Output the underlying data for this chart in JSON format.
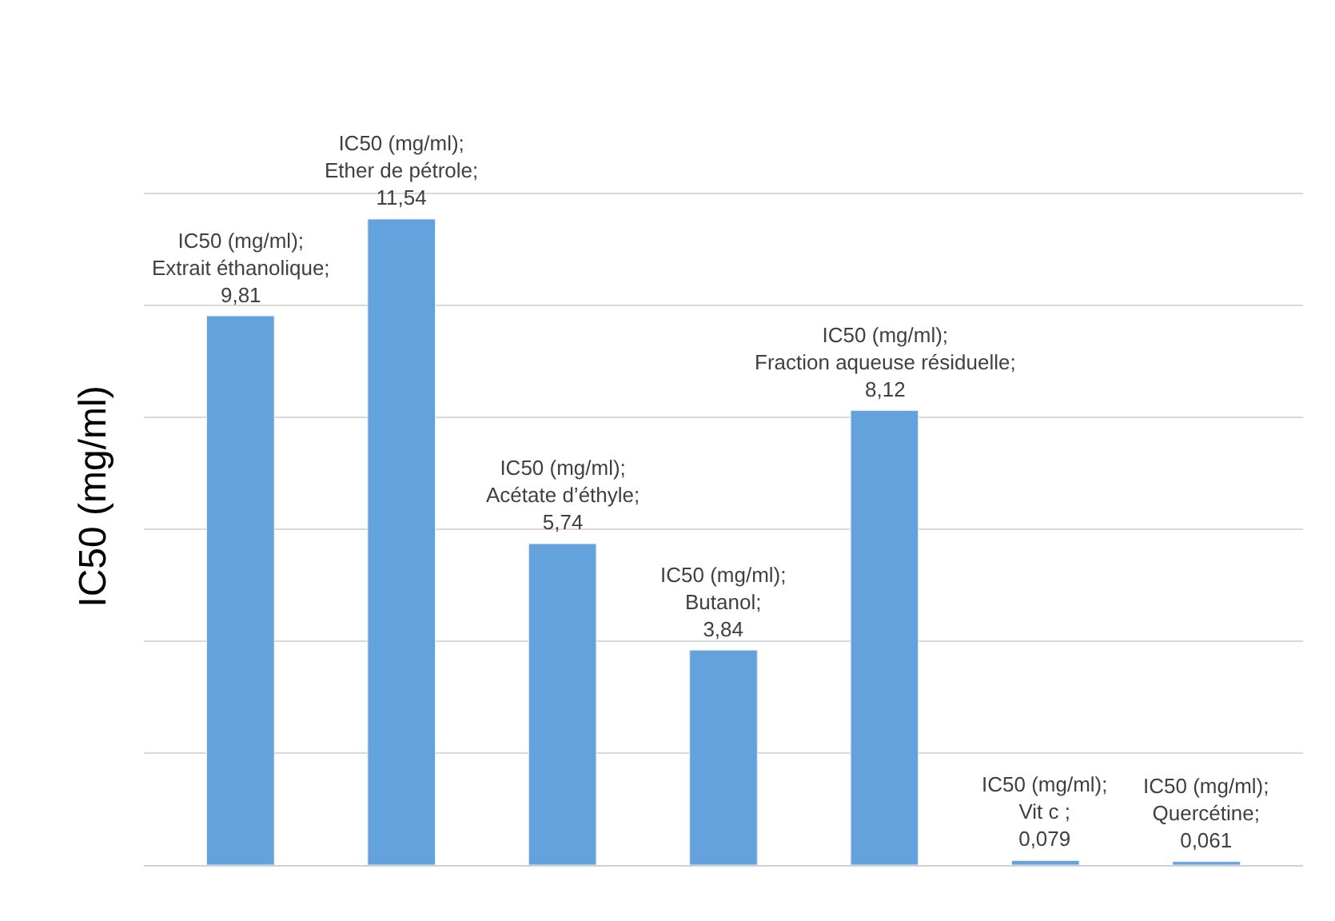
{
  "chart_data": {
    "type": "bar",
    "ylabel": "IC50 (mg/ml)",
    "categories": [
      null,
      null,
      null,
      null,
      null,
      null,
      null
    ],
    "series": [
      {
        "color": "#64a2de",
        "values": [
          9.81,
          11.54,
          5.74,
          3.84,
          8.12,
          0.079,
          0.061
        ],
        "value_labels": [
          "IC50 (mg/ml); Extrait éthanolique; 9,81",
          "IC50 (mg/ml); Ether de pétrole; 11,54",
          "IC50 (mg/ml); Acétate d’éthyle; 5,74",
          "IC50 (mg/ml); Butanol; 3,84",
          "IC50 (mg/ml); Fraction aqueuse résiduelle; 8,12",
          "IC50 (mg/ml); Vit c ; 0,079",
          "IC50 (mg/ml); Quercétine; 0,061"
        ]
      }
    ],
    "grid": "y",
    "tick_labels": false
  }
}
